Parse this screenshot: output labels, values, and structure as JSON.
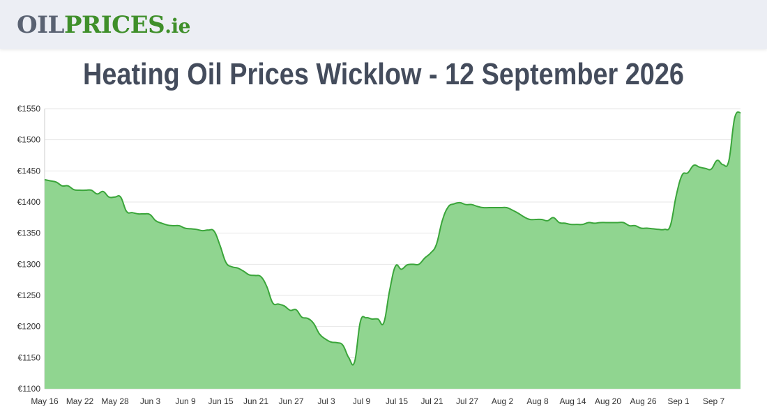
{
  "header": {
    "logo_oil": "OIL",
    "logo_prices": "PRICES",
    "logo_ie": ".ie"
  },
  "chart_data": {
    "type": "area",
    "title": "Heating Oil Prices Wicklow - 12 September 2026",
    "xlabel": "",
    "ylabel": "",
    "y_prefix": "€",
    "ylim": [
      1100,
      1550
    ],
    "y_ticks": [
      1100,
      1150,
      1200,
      1250,
      1300,
      1350,
      1400,
      1450,
      1500,
      1550
    ],
    "x_tick_labels": [
      "May 16",
      "May 22",
      "May 28",
      "Jun 3",
      "Jun 9",
      "Jun 15",
      "Jun 21",
      "Jun 27",
      "Jul 3",
      "Jul 9",
      "Jul 15",
      "Jul 21",
      "Jul 27",
      "Aug 2",
      "Aug 8",
      "Aug 14",
      "Aug 20",
      "Aug 26",
      "Sep 1",
      "Sep 7"
    ],
    "grid": true,
    "line_color": "#3aa53a",
    "fill_color": "#90d590",
    "series": [
      {
        "values": [
          1436,
          1434,
          1432,
          1426,
          1426,
          1420,
          1419,
          1419,
          1419,
          1413,
          1417,
          1408,
          1408,
          1408,
          1385,
          1383,
          1381,
          1381,
          1380,
          1370,
          1366,
          1363,
          1362,
          1362,
          1358,
          1357,
          1356,
          1354,
          1355,
          1353,
          1330,
          1303,
          1296,
          1294,
          1289,
          1283,
          1282,
          1280,
          1264,
          1238,
          1236,
          1233,
          1226,
          1227,
          1215,
          1213,
          1205,
          1188,
          1180,
          1175,
          1174,
          1170,
          1150,
          1143,
          1208,
          1214,
          1212,
          1212,
          1206,
          1258,
          1297,
          1292,
          1299,
          1300,
          1300,
          1310,
          1318,
          1332,
          1370,
          1392,
          1397,
          1399,
          1396,
          1396,
          1393,
          1391,
          1391,
          1391,
          1391,
          1391,
          1387,
          1382,
          1376,
          1372,
          1372,
          1372,
          1370,
          1375,
          1367,
          1366,
          1364,
          1364,
          1364,
          1367,
          1366,
          1367,
          1367,
          1367,
          1367,
          1367,
          1362,
          1362,
          1358,
          1358,
          1357,
          1356,
          1356,
          1362,
          1410,
          1443,
          1447,
          1459,
          1456,
          1454,
          1453,
          1467,
          1460,
          1466,
          1535,
          1544
        ]
      }
    ]
  }
}
